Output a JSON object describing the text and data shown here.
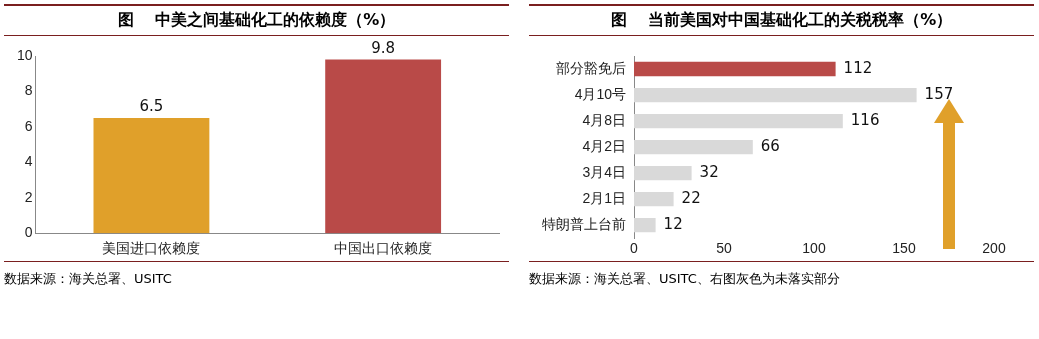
{
  "chart_data": [
    {
      "type": "bar",
      "title": "图　 中美之间基础化工的依赖度（%）",
      "categories": [
        "美国进口依赖度",
        "中国出口依赖度"
      ],
      "values": [
        6.5,
        9.8
      ],
      "colors": [
        "#e0a02a",
        "#b94a48"
      ],
      "ylim": [
        0,
        10
      ],
      "yticks": [
        0,
        2,
        4,
        6,
        8,
        10
      ],
      "grid": false,
      "legend": false,
      "data_labels": true,
      "annotations": [
        "数据来源：海关总署、USITC"
      ]
    },
    {
      "type": "bar",
      "orientation": "horizontal",
      "title": "图　 当前美国对中国基础化工的关税税率（%）",
      "categories": [
        "部分豁免后",
        "4月10号",
        "4月8日",
        "4月2日",
        "3月4日",
        "2月1日",
        "特朗普上台前"
      ],
      "values": [
        112,
        157,
        116,
        66,
        32,
        22,
        12
      ],
      "colors": [
        "#b94a48",
        "#d9d9d9",
        "#d9d9d9",
        "#d9d9d9",
        "#d9d9d9",
        "#d9d9d9",
        "#d9d9d9"
      ],
      "xlim": [
        0,
        200
      ],
      "xticks": [
        0,
        50,
        100,
        150,
        200
      ],
      "grid": false,
      "legend": false,
      "data_labels": true,
      "annotations": [
        "数据来源：海关总署、USITC、右图灰色为未落实部分"
      ]
    }
  ]
}
